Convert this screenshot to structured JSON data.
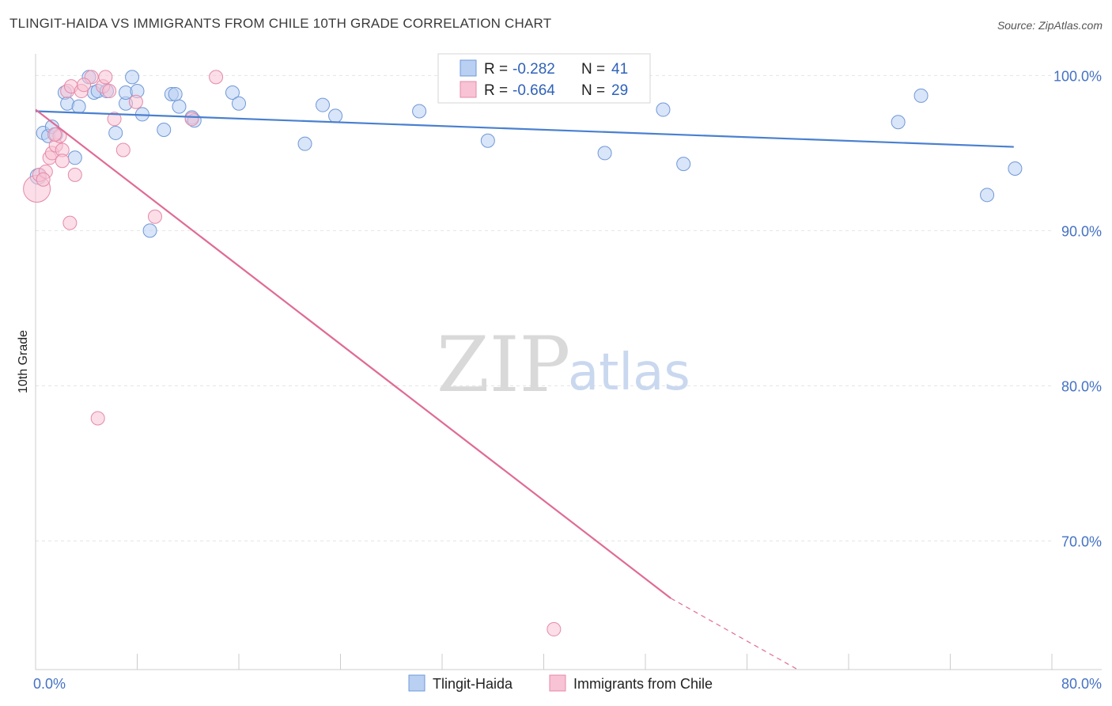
{
  "title": "TLINGIT-HAIDA VS IMMIGRANTS FROM CHILE 10TH GRADE CORRELATION CHART",
  "source": "Source: ZipAtlas.com",
  "watermark": {
    "zip": "ZIP",
    "atlas": "atlas"
  },
  "legend": {
    "r_label": "R =",
    "n_label": "N =",
    "rows": [
      {
        "r": "-0.282",
        "n": "41",
        "fill": "#b9d0f2",
        "stroke": "#6f98d8"
      },
      {
        "r": "-0.664",
        "n": "29",
        "fill": "#f8c3d4",
        "stroke": "#e58aa8"
      }
    ]
  },
  "chart_data": {
    "type": "scatter",
    "title": "TLINGIT-HAIDA VS IMMIGRANTS FROM CHILE 10TH GRADE CORRELATION CHART",
    "xlabel": "",
    "ylabel": "10th Grade",
    "xlim": [
      0,
      80
    ],
    "ylim": [
      61.7,
      101.4
    ],
    "x_tick_labels": [
      {
        "value": 0,
        "label": "0.0%"
      },
      {
        "value": 80,
        "label": "80.0%"
      }
    ],
    "y_tick_labels": [
      {
        "value": 100,
        "label": "100.0%"
      },
      {
        "value": 90,
        "label": "90.0%"
      },
      {
        "value": 80,
        "label": "80.0%"
      },
      {
        "value": 70,
        "label": "70.0%"
      }
    ],
    "grid": true,
    "legend_position": "top-center",
    "series": [
      {
        "name": "Tlingit-Haida",
        "color": "#4a80d0",
        "fill": "#b9d0f2",
        "trend": {
          "x": [
            0,
            77
          ],
          "y": [
            97.7,
            95.4
          ]
        },
        "points": [
          {
            "x": 0.2,
            "y": 93.5
          },
          {
            "x": 0.6,
            "y": 96.3
          },
          {
            "x": 1.0,
            "y": 96.1
          },
          {
            "x": 1.3,
            "y": 96.7
          },
          {
            "x": 1.6,
            "y": 96.2
          },
          {
            "x": 2.3,
            "y": 98.9
          },
          {
            "x": 2.5,
            "y": 98.2
          },
          {
            "x": 3.1,
            "y": 94.7
          },
          {
            "x": 3.4,
            "y": 98.0
          },
          {
            "x": 4.2,
            "y": 99.9
          },
          {
            "x": 4.6,
            "y": 98.9
          },
          {
            "x": 4.9,
            "y": 99.0
          },
          {
            "x": 5.6,
            "y": 99.0
          },
          {
            "x": 6.3,
            "y": 96.3
          },
          {
            "x": 7.1,
            "y": 98.2
          },
          {
            "x": 7.1,
            "y": 98.9
          },
          {
            "x": 7.6,
            "y": 99.9
          },
          {
            "x": 8.0,
            "y": 99.0
          },
          {
            "x": 8.4,
            "y": 97.5
          },
          {
            "x": 9.0,
            "y": 90.0
          },
          {
            "x": 10.1,
            "y": 96.5
          },
          {
            "x": 10.7,
            "y": 98.8
          },
          {
            "x": 11.0,
            "y": 98.8
          },
          {
            "x": 11.3,
            "y": 98.0
          },
          {
            "x": 12.3,
            "y": 97.3
          },
          {
            "x": 12.5,
            "y": 97.1
          },
          {
            "x": 15.5,
            "y": 98.9
          },
          {
            "x": 16.0,
            "y": 98.2
          },
          {
            "x": 21.2,
            "y": 95.6
          },
          {
            "x": 22.6,
            "y": 98.1
          },
          {
            "x": 23.6,
            "y": 97.4
          },
          {
            "x": 30.2,
            "y": 97.7
          },
          {
            "x": 35.6,
            "y": 95.8
          },
          {
            "x": 36.9,
            "y": 99.9
          },
          {
            "x": 44.8,
            "y": 95.0
          },
          {
            "x": 49.4,
            "y": 97.8
          },
          {
            "x": 51.0,
            "y": 94.3
          },
          {
            "x": 67.9,
            "y": 97.0
          },
          {
            "x": 69.7,
            "y": 98.7
          },
          {
            "x": 74.9,
            "y": 92.3
          },
          {
            "x": 77.1,
            "y": 94.0
          }
        ]
      },
      {
        "name": "Immigrants from Chile",
        "color": "#e06b96",
        "fill": "#f8c3d4",
        "trend": {
          "x": [
            0,
            50
          ],
          "y": [
            97.8,
            66.3
          ]
        },
        "trend_dashed": {
          "x": [
            50,
            60
          ],
          "y": [
            66.3,
            61.7
          ]
        },
        "points": [
          {
            "x": 0.1,
            "y": 92.7
          },
          {
            "x": 0.3,
            "y": 93.6
          },
          {
            "x": 0.8,
            "y": 93.8
          },
          {
            "x": 1.1,
            "y": 94.7
          },
          {
            "x": 1.3,
            "y": 95.0
          },
          {
            "x": 1.6,
            "y": 95.5
          },
          {
            "x": 1.9,
            "y": 96.1
          },
          {
            "x": 2.1,
            "y": 95.2
          },
          {
            "x": 2.1,
            "y": 94.5
          },
          {
            "x": 2.5,
            "y": 99.0
          },
          {
            "x": 2.7,
            "y": 90.5
          },
          {
            "x": 2.8,
            "y": 99.3
          },
          {
            "x": 3.1,
            "y": 93.6
          },
          {
            "x": 3.6,
            "y": 99.0
          },
          {
            "x": 4.4,
            "y": 99.9
          },
          {
            "x": 4.9,
            "y": 77.9
          },
          {
            "x": 5.3,
            "y": 99.3
          },
          {
            "x": 5.5,
            "y": 99.9
          },
          {
            "x": 5.8,
            "y": 99.0
          },
          {
            "x": 6.2,
            "y": 97.2
          },
          {
            "x": 6.9,
            "y": 95.2
          },
          {
            "x": 7.9,
            "y": 98.3
          },
          {
            "x": 9.4,
            "y": 90.9
          },
          {
            "x": 12.3,
            "y": 97.2
          },
          {
            "x": 14.2,
            "y": 99.9
          },
          {
            "x": 40.8,
            "y": 64.3
          },
          {
            "x": 1.5,
            "y": 96.2
          },
          {
            "x": 0.6,
            "y": 93.3
          },
          {
            "x": 3.8,
            "y": 99.4
          }
        ]
      }
    ]
  }
}
